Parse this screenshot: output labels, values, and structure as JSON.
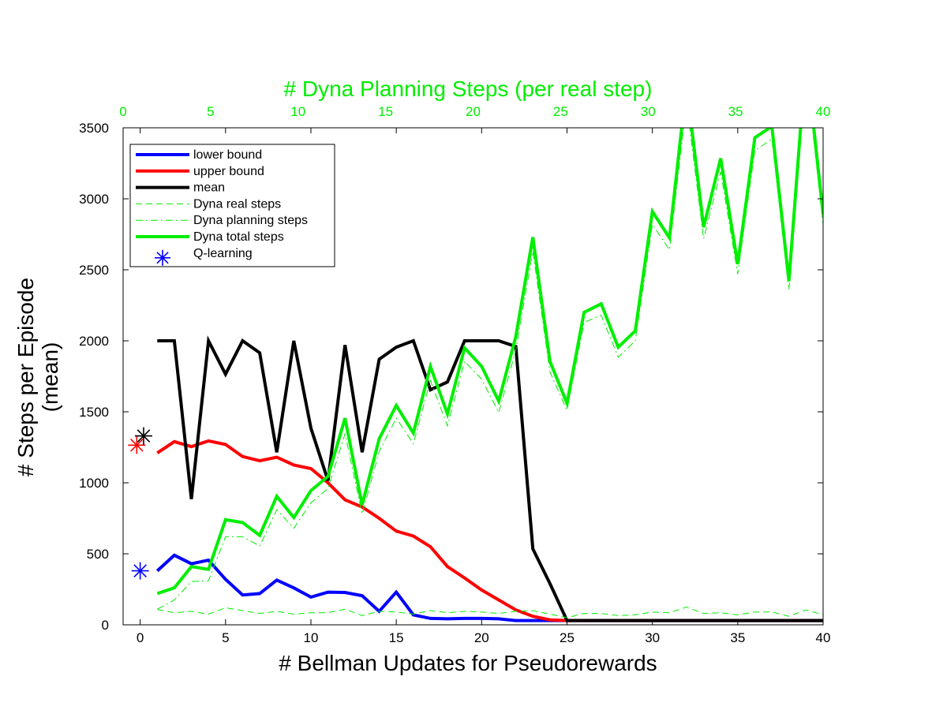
{
  "chart_data": {
    "type": "line",
    "top_axis_title": "# Dyna Planning Steps (per real step)",
    "xlabel": "# Bellman Updates for Pseudorewards",
    "ylabel_line1": "# Steps per Episode",
    "ylabel_line2": "(mean)",
    "xlim": [
      -1,
      40
    ],
    "ylim": [
      0,
      3500
    ],
    "x_ticks": [
      0,
      5,
      10,
      15,
      20,
      25,
      30,
      35,
      40
    ],
    "y_ticks": [
      0,
      500,
      1000,
      1500,
      2000,
      2500,
      3000,
      3500
    ],
    "top_ticks": [
      0,
      5,
      10,
      15,
      20,
      25,
      30,
      35,
      40
    ],
    "grid": false,
    "legend_position": "top-left",
    "colors": {
      "lower_bound": "#0000ff",
      "upper_bound": "#ff0000",
      "mean": "#000000",
      "dyna": "#00ee00",
      "q_learning": "#0000ff",
      "top_axis": "#00ee00"
    },
    "series": [
      {
        "name": "lower bound",
        "style": "solid-thick",
        "color": "#0000ff",
        "x": [
          1,
          2,
          3,
          4,
          5,
          6,
          7,
          8,
          9,
          10,
          11,
          12,
          13,
          14,
          15,
          16,
          17,
          18,
          19,
          20,
          21,
          22,
          23,
          24,
          25,
          26,
          27,
          28,
          29,
          30,
          31,
          32,
          33,
          34,
          35,
          36,
          37,
          38,
          39,
          40
        ],
        "values": [
          380,
          490,
          430,
          455,
          320,
          210,
          220,
          315,
          260,
          195,
          230,
          228,
          205,
          95,
          230,
          70,
          45,
          42,
          45,
          45,
          42,
          30,
          30,
          30,
          30,
          30,
          30,
          30,
          30,
          30,
          30,
          30,
          30,
          30,
          30,
          30,
          30,
          30,
          30,
          30
        ]
      },
      {
        "name": "upper bound",
        "style": "solid-thick",
        "color": "#ff0000",
        "x": [
          1,
          2,
          3,
          4,
          5,
          6,
          7,
          8,
          9,
          10,
          11,
          12,
          13,
          14,
          15,
          16,
          17,
          18,
          19,
          20,
          21,
          22,
          23,
          24,
          25,
          26,
          27,
          28,
          29,
          30,
          31,
          32,
          33,
          34,
          35,
          36,
          37,
          38,
          39,
          40
        ],
        "values": [
          1210,
          1290,
          1255,
          1295,
          1270,
          1185,
          1155,
          1180,
          1125,
          1100,
          1000,
          880,
          830,
          750,
          660,
          625,
          550,
          410,
          330,
          245,
          175,
          105,
          60,
          35,
          30,
          30,
          30,
          30,
          30,
          30,
          30,
          30,
          30,
          30,
          30,
          30,
          30,
          30,
          30,
          30
        ]
      },
      {
        "name": "mean",
        "style": "solid-thick",
        "color": "#000000",
        "x": [
          1,
          2,
          3,
          4,
          5,
          6,
          7,
          8,
          9,
          10,
          11,
          12,
          13,
          14,
          15,
          16,
          17,
          18,
          19,
          20,
          21,
          22,
          23,
          24,
          25,
          26,
          27,
          28,
          29,
          30,
          31,
          32,
          33,
          34,
          35,
          36,
          37,
          38,
          39,
          40
        ],
        "values": [
          2000,
          2000,
          885,
          2000,
          1765,
          2000,
          1915,
          1215,
          2000,
          1385,
          1015,
          1970,
          1215,
          1870,
          1955,
          2000,
          1655,
          1710,
          2000,
          2000,
          2000,
          1960,
          535,
          290,
          30,
          30,
          30,
          30,
          30,
          30,
          30,
          30,
          30,
          30,
          30,
          30,
          30,
          30,
          30,
          30
        ]
      },
      {
        "name": "Dyna real steps",
        "style": "dashed-thin",
        "color": "#00ee00",
        "x": [
          1,
          2,
          3,
          4,
          5,
          6,
          7,
          8,
          9,
          10,
          11,
          12,
          13,
          14,
          15,
          16,
          17,
          18,
          19,
          20,
          21,
          22,
          23,
          24,
          25,
          26,
          27,
          28,
          29,
          30,
          31,
          32,
          33,
          34,
          35,
          36,
          37,
          38,
          39,
          40
        ],
        "values": [
          108,
          85,
          95,
          75,
          120,
          100,
          80,
          95,
          75,
          85,
          85,
          110,
          65,
          95,
          90,
          75,
          100,
          85,
          95,
          90,
          80,
          95,
          100,
          75,
          50,
          80,
          80,
          65,
          70,
          90,
          85,
          125,
          80,
          85,
          70,
          90,
          90,
          60,
          105,
          70
        ]
      },
      {
        "name": "Dyna planning steps",
        "style": "dashdot-thin",
        "color": "#00ee00",
        "x": [
          1,
          2,
          3,
          4,
          5,
          6,
          7,
          8,
          9,
          10,
          11,
          12,
          13,
          14,
          15,
          16,
          17,
          18,
          19,
          20,
          21,
          22,
          23,
          24,
          25,
          26,
          27,
          28,
          29,
          30,
          31,
          32,
          33,
          34,
          35,
          36,
          37,
          38,
          39,
          40
        ],
        "values": [
          110,
          175,
          305,
          310,
          620,
          620,
          555,
          810,
          680,
          860,
          960,
          1345,
          780,
          1220,
          1455,
          1275,
          1720,
          1400,
          1855,
          1730,
          1495,
          1935,
          2630,
          1780,
          1510,
          2130,
          2180,
          1885,
          2000,
          2820,
          2640,
          3680,
          2720,
          3190,
          2470,
          3340,
          3420,
          2360,
          3900,
          2820
        ]
      },
      {
        "name": "Dyna total steps",
        "style": "solid-thick",
        "color": "#00ee00",
        "x": [
          1,
          2,
          3,
          4,
          5,
          6,
          7,
          8,
          9,
          10,
          11,
          12,
          13,
          14,
          15,
          16,
          17,
          18,
          19,
          20,
          21,
          22,
          23,
          24,
          25,
          26,
          27,
          28,
          29,
          30,
          31,
          32,
          33,
          34,
          35,
          36,
          37,
          38,
          39,
          40
        ],
        "values": [
          220,
          260,
          410,
          390,
          740,
          720,
          630,
          905,
          755,
          945,
          1045,
          1455,
          845,
          1310,
          1545,
          1350,
          1820,
          1485,
          1950,
          1820,
          1575,
          2030,
          2730,
          1855,
          1560,
          2200,
          2260,
          1955,
          2070,
          2910,
          2725,
          3805,
          2800,
          3285,
          2540,
          3430,
          3510,
          2420,
          4005,
          2890
        ]
      }
    ],
    "q_learning_markers": [
      {
        "x": 0,
        "y": 380,
        "color": "#0000ff"
      },
      {
        "x": -0.2,
        "y": 1265,
        "color": "#ff0000"
      },
      {
        "x": 0.2,
        "y": 1330,
        "color": "#000000"
      }
    ],
    "legend": [
      {
        "label": "lower bound",
        "style": "solid-thick",
        "color": "#0000ff"
      },
      {
        "label": "upper bound",
        "style": "solid-thick",
        "color": "#ff0000"
      },
      {
        "label": "mean",
        "style": "solid-thick",
        "color": "#000000"
      },
      {
        "label": "Dyna real steps",
        "style": "dashed-thin",
        "color": "#00ee00"
      },
      {
        "label": "Dyna planning steps",
        "style": "dashdot-thin",
        "color": "#00ee00"
      },
      {
        "label": "Dyna total steps",
        "style": "solid-thick",
        "color": "#00ee00"
      },
      {
        "label": "Q-learning",
        "style": "marker-star",
        "color": "#0000ff"
      }
    ]
  }
}
